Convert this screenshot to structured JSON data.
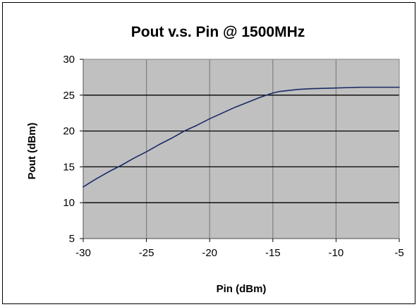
{
  "chart_data": {
    "type": "line",
    "title": "Pout v.s. Pin @ 1500MHz",
    "xlabel": "Pin (dBm)",
    "ylabel": "Pout (dBm)",
    "xlim": [
      -30,
      -5
    ],
    "ylim": [
      5,
      30
    ],
    "x_ticks": [
      -30,
      -25,
      -20,
      -15,
      -10,
      -5
    ],
    "y_ticks": [
      5,
      10,
      15,
      20,
      25,
      30
    ],
    "grid": true,
    "legend": "none",
    "colors": {
      "plot_background": "#c0c0c0",
      "horizontal_grid": "#000000",
      "vertical_grid": "#808080",
      "series": "#1a2a66"
    },
    "series": [
      {
        "x": [
          -30,
          -29,
          -28,
          -27,
          -26,
          -25,
          -24,
          -23,
          -22,
          -21,
          -20,
          -19,
          -18,
          -17,
          -16,
          -15,
          -14.5,
          -14,
          -13,
          -12,
          -11,
          -10,
          -9,
          -8,
          -7,
          -6,
          -5
        ],
        "y": [
          12.2,
          13.3,
          14.3,
          15.2,
          16.2,
          17.1,
          18.1,
          19.0,
          20.0,
          20.8,
          21.7,
          22.5,
          23.3,
          24.0,
          24.7,
          25.3,
          25.5,
          25.6,
          25.8,
          25.9,
          25.95,
          26.0,
          26.05,
          26.1,
          26.1,
          26.1,
          26.1
        ]
      }
    ]
  }
}
